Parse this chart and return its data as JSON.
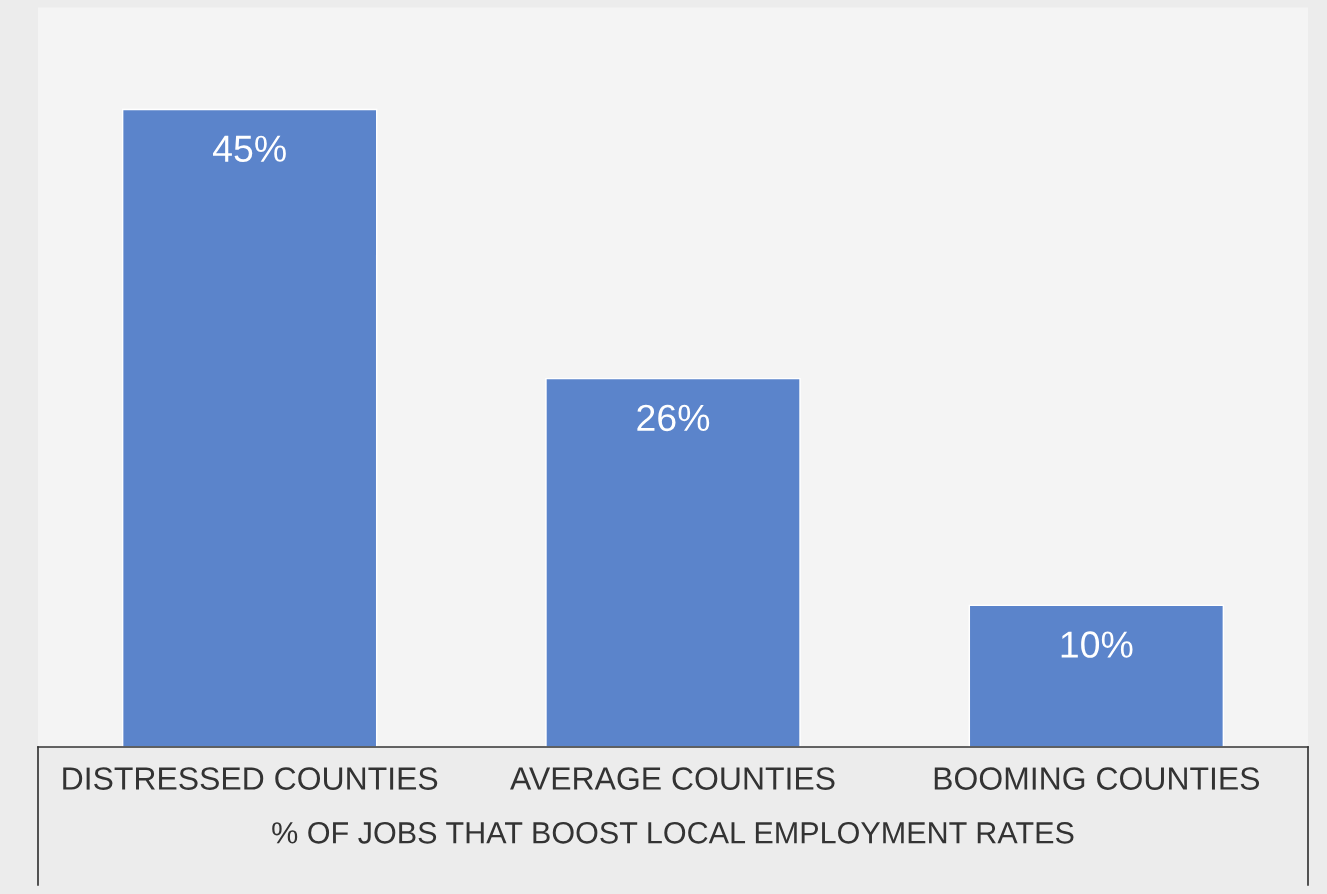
{
  "chart_data": {
    "type": "bar",
    "categories": [
      "DISTRESSED COUNTIES",
      "AVERAGE COUNTIES",
      "BOOMING COUNTIES"
    ],
    "values": [
      45,
      26,
      10
    ],
    "value_labels": [
      "45%",
      "26%",
      "10%"
    ],
    "color": "#5b84cb",
    "xlabel": "% OF JOBS THAT BOOST LOCAL EMPLOYMENT RATES",
    "grid": false,
    "legend": false
  }
}
